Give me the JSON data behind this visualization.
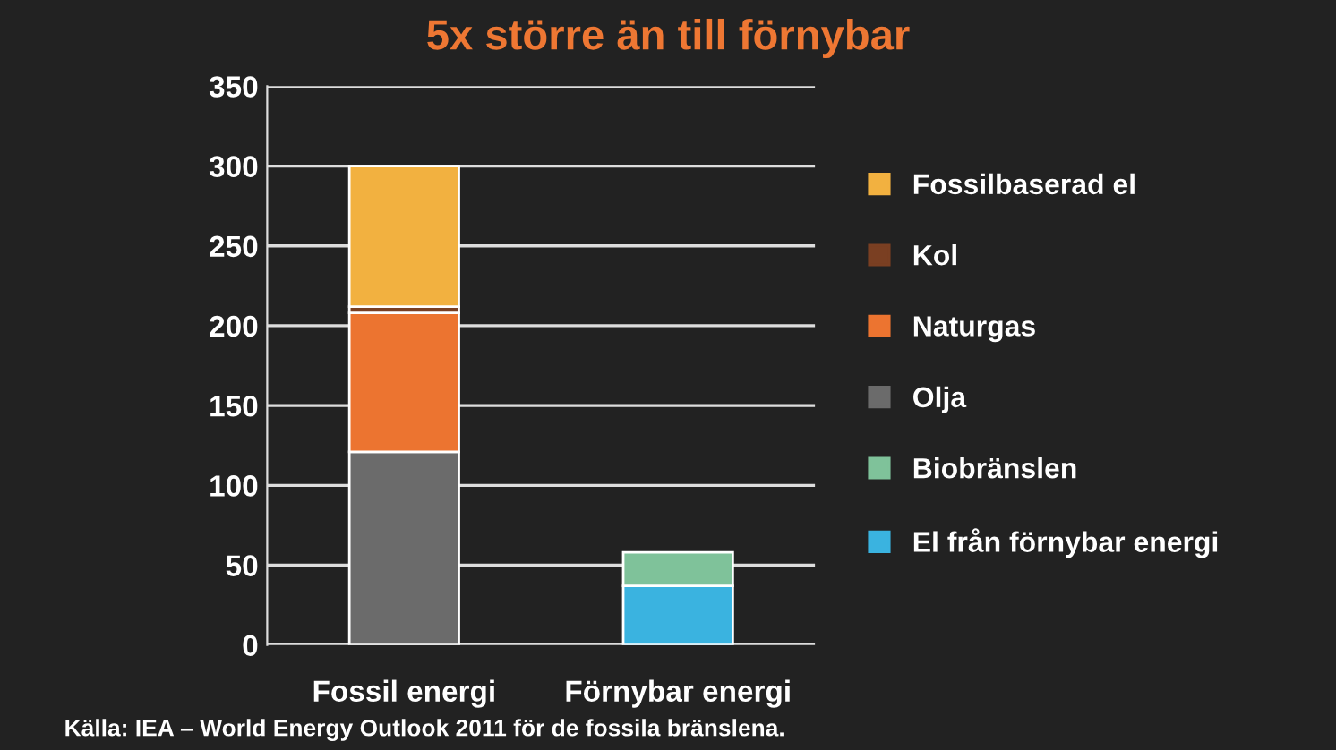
{
  "chart_data": {
    "type": "bar",
    "title": "5x större än till förnybar",
    "categories": [
      "Fossil energi",
      "Förnybar energi"
    ],
    "stacked": true,
    "series": [
      {
        "name": "El från förnybar energi",
        "color": "#3ab3e0",
        "values": [
          null,
          37
        ]
      },
      {
        "name": "Biobränslen",
        "color": "#7fc29a",
        "values": [
          null,
          21
        ]
      },
      {
        "name": "Olja",
        "color": "#6b6b6b",
        "values": [
          121,
          null
        ]
      },
      {
        "name": "Naturgas",
        "color": "#ec7430",
        "values": [
          87,
          null
        ]
      },
      {
        "name": "Kol",
        "color": "#7a3f22",
        "values": [
          4,
          null
        ]
      },
      {
        "name": "Fossilbaserad el",
        "color": "#f2b140",
        "values": [
          88,
          null
        ]
      }
    ],
    "ylim": [
      0,
      350
    ],
    "yticks": [
      0,
      50,
      100,
      150,
      200,
      250,
      300,
      350
    ],
    "grid": "y",
    "legend": "right",
    "annotations": [
      "Källa: IEA – World Energy Outlook 2011 för de fossila bränslena."
    ]
  }
}
